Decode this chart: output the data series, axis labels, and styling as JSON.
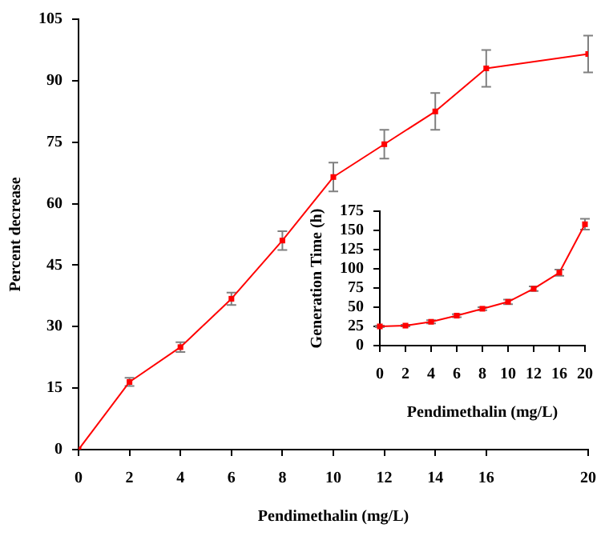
{
  "chart_data": [
    {
      "type": "line",
      "xlabel": "Pendimethalin (mg/L)",
      "ylabel": "Percent decrease",
      "x": [
        0,
        2,
        4,
        6,
        8,
        10,
        12,
        14,
        16,
        20
      ],
      "series": [
        {
          "color": "#ff0000",
          "values": [
            0,
            16.5,
            25,
            36.8,
            51,
            66.5,
            74.5,
            82.5,
            93,
            96.5
          ],
          "errors": [
            null,
            1,
            1.2,
            1.5,
            2.3,
            3.5,
            3.5,
            4.5,
            4.5,
            4.5
          ]
        }
      ],
      "xlim": [
        0,
        20
      ],
      "xticks": [
        0,
        2,
        4,
        6,
        8,
        10,
        12,
        14,
        16,
        20
      ],
      "ylim": [
        0,
        105
      ],
      "yticks": [
        0,
        15,
        30,
        45,
        60,
        75,
        90,
        105
      ],
      "grid": false,
      "legend": false,
      "marker": "square",
      "line_style": "solid"
    },
    {
      "type": "line",
      "xlabel": "Pendimethalin (mg/L)",
      "ylabel": "Generation Time (h)",
      "categories": [
        "0",
        "2",
        "4",
        "6",
        "8",
        "10",
        "12",
        "16",
        "20"
      ],
      "series": [
        {
          "color": "#ff0000",
          "values": [
            25,
            26,
            31,
            39,
            48,
            57,
            74,
            95,
            158
          ],
          "errors": [
            1,
            1,
            2,
            2,
            2,
            3,
            3,
            4,
            7
          ]
        }
      ],
      "ylim": [
        0,
        175
      ],
      "yticks": [
        0,
        25,
        50,
        75,
        100,
        125,
        150,
        175
      ],
      "grid": false,
      "legend": false,
      "marker": "square",
      "line_style": "solid"
    }
  ]
}
